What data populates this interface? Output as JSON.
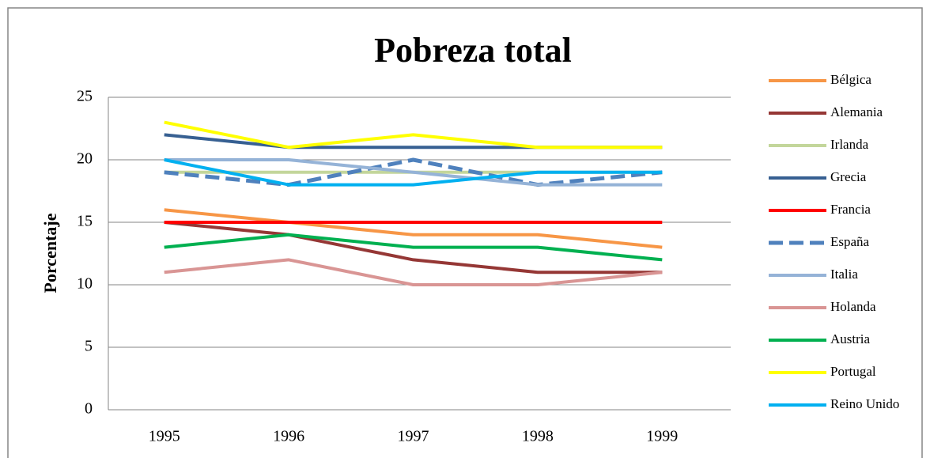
{
  "chart_data": {
    "type": "line",
    "title": "Pobreza total",
    "y_label": "Porcentaje",
    "categories": [
      "1995",
      "1996",
      "1997",
      "1998",
      "1999"
    ],
    "ylim": [
      0,
      25
    ],
    "yticks": [
      0,
      5,
      10,
      15,
      20,
      25
    ],
    "grid": true,
    "legend": "right",
    "series": [
      {
        "name": "Bélgica",
        "color": "#f79646",
        "values": [
          16,
          15,
          14,
          14,
          13
        ]
      },
      {
        "name": "Alemania",
        "color": "#953735",
        "values": [
          15,
          14,
          12,
          11,
          11
        ]
      },
      {
        "name": "Irlanda",
        "color": "#c3d69b",
        "values": [
          19,
          19,
          19,
          19,
          19
        ]
      },
      {
        "name": "Grecia",
        "color": "#376092",
        "values": [
          22,
          21,
          21,
          21,
          21
        ]
      },
      {
        "name": "Francia",
        "color": "#ff0000",
        "values": [
          15,
          15,
          15,
          15,
          15
        ]
      },
      {
        "name": "España",
        "color": "#4f81bd",
        "dashed": true,
        "values": [
          19,
          18,
          20,
          18,
          19
        ]
      },
      {
        "name": "Italia",
        "color": "#95b3d7",
        "values": [
          20,
          20,
          19,
          18,
          18
        ]
      },
      {
        "name": "Holanda",
        "color": "#d99594",
        "values": [
          11,
          12,
          10,
          10,
          11
        ]
      },
      {
        "name": "Austria",
        "color": "#00b050",
        "values": [
          13,
          14,
          13,
          13,
          12
        ]
      },
      {
        "name": "Portugal",
        "color": "#ffff00",
        "values": [
          23,
          21,
          22,
          21,
          21
        ]
      },
      {
        "name": "Reino Unido",
        "color": "#00b0f0",
        "values": [
          20,
          18,
          18,
          19,
          19
        ]
      }
    ]
  }
}
